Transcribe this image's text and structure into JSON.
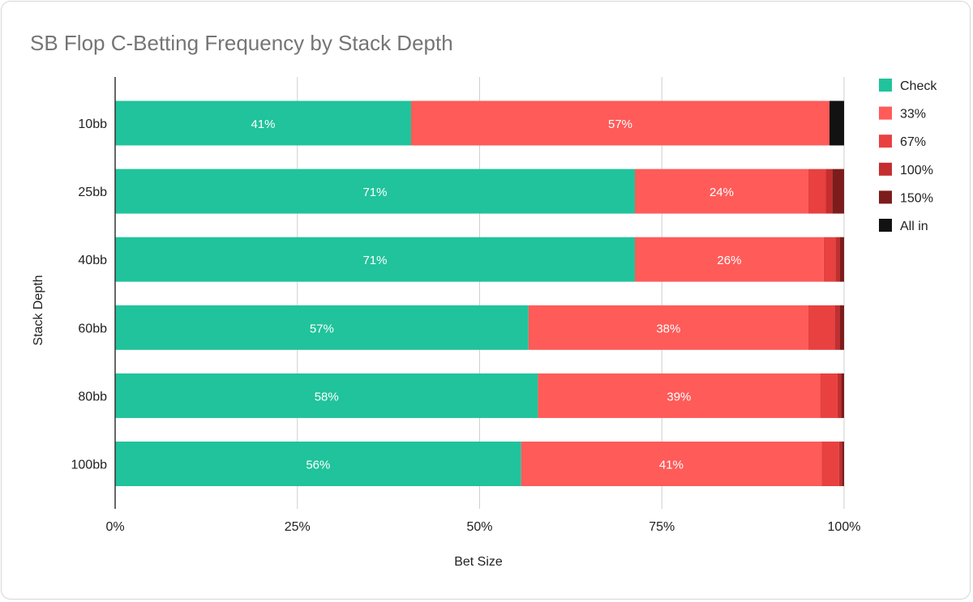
{
  "chart_data": {
    "type": "bar",
    "orientation": "horizontal",
    "stacked": "percent",
    "title": "SB Flop C-Betting Frequency by Stack Depth",
    "xlabel": "Bet Size",
    "ylabel": "Stack Depth",
    "xlim": [
      0,
      100
    ],
    "x_ticks": [
      "0%",
      "25%",
      "50%",
      "75%",
      "100%"
    ],
    "grid": true,
    "legend_position": "right",
    "categories": [
      "10bb",
      "25bb",
      "40bb",
      "60bb",
      "80bb",
      "100bb"
    ],
    "series": [
      {
        "name": "Check",
        "color": "#20c39b",
        "values": [
          40.6,
          71.3,
          71.3,
          56.7,
          58.0,
          55.7
        ]
      },
      {
        "name": "33%",
        "color": "#fe5b59",
        "values": [
          57.4,
          23.8,
          25.9,
          38.4,
          38.7,
          41.2
        ]
      },
      {
        "name": "67%",
        "color": "#e84140",
        "values": [
          0.0,
          2.4,
          1.6,
          3.6,
          2.4,
          2.4
        ]
      },
      {
        "name": "100%",
        "color": "#c42e2e",
        "values": [
          0.0,
          0.9,
          0.6,
          0.7,
          0.5,
          0.4
        ]
      },
      {
        "name": "150%",
        "color": "#7d1c1c",
        "values": [
          0.0,
          1.6,
          0.6,
          0.6,
          0.4,
          0.3
        ]
      },
      {
        "name": "All in",
        "color": "#121212",
        "values": [
          2.0,
          0.0,
          0.0,
          0.0,
          0.0,
          0.0
        ]
      }
    ],
    "data_labels": [
      [
        "41%",
        "57%"
      ],
      [
        "71%",
        "24%"
      ],
      [
        "71%",
        "26%"
      ],
      [
        "57%",
        "38%"
      ],
      [
        "58%",
        "39%"
      ],
      [
        "56%",
        "41%"
      ]
    ]
  }
}
